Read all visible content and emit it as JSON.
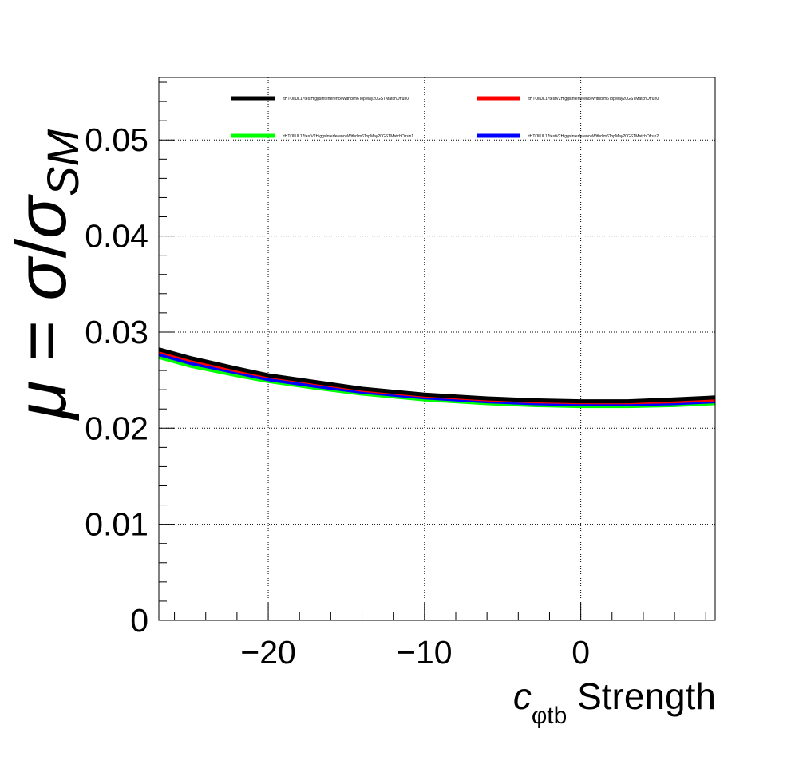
{
  "chart_data": {
    "type": "line",
    "title": "",
    "xlabel": {
      "main": "c",
      "subscript": "φtb",
      "suffix": " Strength"
    },
    "ylabel": {
      "mu": "μ",
      "equals": " = ",
      "sigma": "σ",
      "slash": "/",
      "sigma2": "σ",
      "subscript": "SM"
    },
    "xlim": [
      -27,
      8.6
    ],
    "ylim": [
      0,
      0.0565
    ],
    "xticks": [
      -20,
      -10,
      0
    ],
    "xtick_labels": [
      "−20",
      "−10",
      "0"
    ],
    "yticks": [
      0,
      0.01,
      0.02,
      0.03,
      0.04,
      0.05
    ],
    "ytick_labels": [
      "0",
      "0.01",
      "0.02",
      "0.03",
      "0.04",
      "0.05"
    ],
    "grid": true,
    "legend_placement": "top",
    "series": [
      {
        "name": "ttHTOllUL17testHiggsInterferenceWithdim6TopMay20GSTMatchOfrun0",
        "color": "#000000",
        "x": [
          -27,
          -25,
          -22,
          -20,
          -17,
          -14,
          -10,
          -6,
          -3,
          0,
          3,
          6,
          8.6
        ],
        "y": [
          0.0282,
          0.0273,
          0.0262,
          0.0255,
          0.0248,
          0.0241,
          0.0235,
          0.0231,
          0.0229,
          0.0228,
          0.0228,
          0.023,
          0.0232
        ]
      },
      {
        "name": "ttHTOllUL17testV2HiggsInterferenceWithdim6TopMay20GSTMatchOfrun0",
        "color": "#ff0000",
        "x": [
          -27,
          -25,
          -22,
          -20,
          -17,
          -14,
          -10,
          -6,
          -3,
          0,
          3,
          6,
          8.6
        ],
        "y": [
          0.028,
          0.0271,
          0.026,
          0.0254,
          0.0247,
          0.024,
          0.0234,
          0.023,
          0.0228,
          0.0227,
          0.0227,
          0.0228,
          0.023
        ]
      },
      {
        "name": "ttHTOllUL17testV2HiggsInterferenceWithdim6TopMay20GSTMatchOfrun1",
        "color": "#00ff00",
        "x": [
          -27,
          -25,
          -22,
          -20,
          -17,
          -14,
          -10,
          -6,
          -3,
          0,
          3,
          6,
          8.6
        ],
        "y": [
          0.0274,
          0.0265,
          0.0255,
          0.0249,
          0.0242,
          0.0236,
          0.023,
          0.0226,
          0.0224,
          0.0223,
          0.0223,
          0.0224,
          0.0226
        ]
      },
      {
        "name": "ttHTOllUL17testV2HiggsInterferenceWithdim6TopMay20GSTMatchOfrun2",
        "color": "#0000ff",
        "x": [
          -27,
          -25,
          -22,
          -20,
          -17,
          -14,
          -10,
          -6,
          -3,
          0,
          3,
          6,
          8.6
        ],
        "y": [
          0.0277,
          0.0268,
          0.0258,
          0.0251,
          0.0244,
          0.0238,
          0.0232,
          0.0228,
          0.0226,
          0.0225,
          0.0225,
          0.0226,
          0.0228
        ]
      }
    ]
  }
}
